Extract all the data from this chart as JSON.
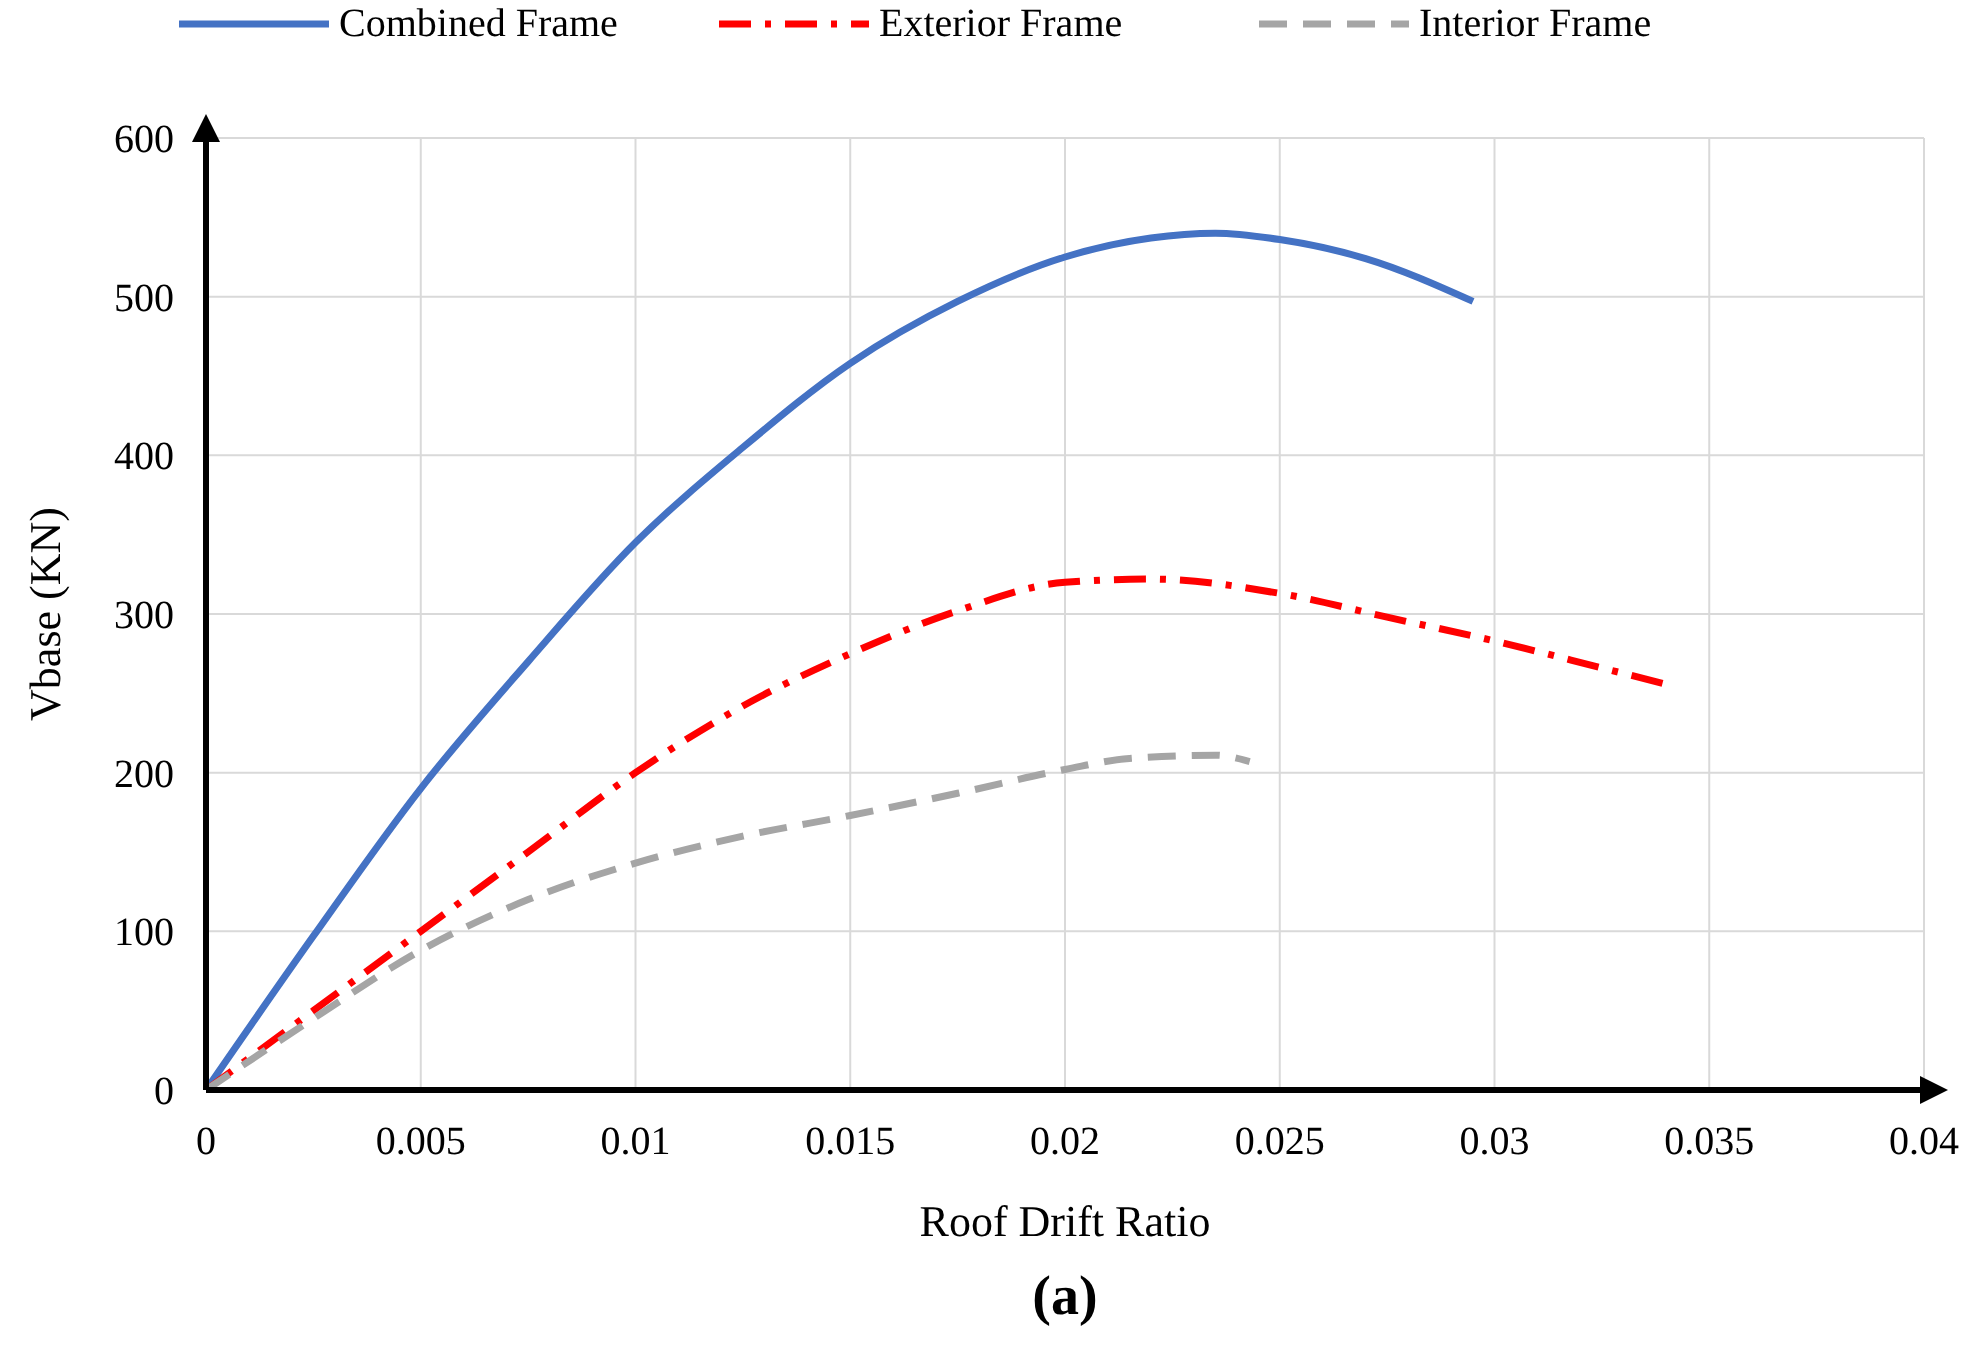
{
  "chart_data": {
    "type": "line",
    "xlabel": "Roof Drift Ratio",
    "ylabel": "Vbase (KN)",
    "annotations": [
      "(a)"
    ],
    "xlim": [
      0,
      0.04
    ],
    "ylim": [
      0,
      600
    ],
    "xticks": [
      0,
      0.005,
      0.01,
      0.015,
      0.02,
      0.025,
      0.03,
      0.035,
      0.04
    ],
    "yticks": [
      0,
      100,
      200,
      300,
      400,
      500,
      600
    ],
    "grid": true,
    "legend": "top",
    "series": [
      {
        "name": "Combined Frame",
        "color": "#4472c4",
        "line_style": "solid",
        "x": [
          0,
          0.0025,
          0.005,
          0.0075,
          0.01,
          0.0125,
          0.015,
          0.0175,
          0.02,
          0.022,
          0.0235,
          0.025,
          0.027,
          0.0295
        ],
        "values": [
          0,
          97,
          190,
          270,
          345,
          405,
          458,
          497,
          525,
          537,
          540,
          536,
          524,
          497
        ]
      },
      {
        "name": "Exterior Frame",
        "color": "#ff0000",
        "line_style": "dashdot",
        "x": [
          0,
          0.0025,
          0.005,
          0.0075,
          0.01,
          0.0125,
          0.015,
          0.0175,
          0.02,
          0.022,
          0.025,
          0.0275,
          0.03,
          0.0325,
          0.0341
        ],
        "values": [
          0,
          50,
          100,
          150,
          200,
          242,
          275,
          302,
          320,
          322,
          313,
          298,
          283,
          266,
          255
        ]
      },
      {
        "name": "Interior Frame",
        "color": "#a5a5a5",
        "line_style": "dashed",
        "x": [
          0,
          0.0025,
          0.005,
          0.0075,
          0.01,
          0.0125,
          0.015,
          0.0175,
          0.02,
          0.0215,
          0.0235,
          0.0243
        ],
        "values": [
          0,
          45,
          88,
          120,
          143,
          160,
          173,
          187,
          202,
          209,
          211,
          207
        ]
      }
    ]
  }
}
